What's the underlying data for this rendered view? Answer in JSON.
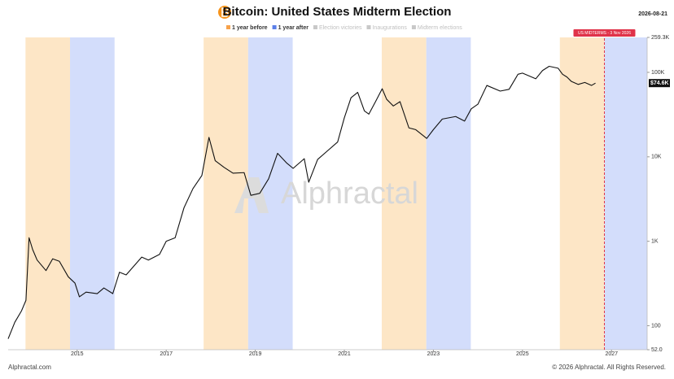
{
  "chart_data": {
    "type": "line",
    "title": "Bitcoin: United States Midterm Election",
    "date": "2026-08-21",
    "watermark": "Alphractal",
    "footer_left": "Alphractal.com",
    "footer_right": "© 2026 Alphractal. All Rights Reserved.",
    "log_scale": true,
    "legend": [
      {
        "name": "1 year before",
        "color": "#f7a24b",
        "active": true
      },
      {
        "name": "1 year after",
        "color": "#5b7fe8",
        "active": true
      },
      {
        "name": "Election victories",
        "color": "#c8c8c8",
        "active": false
      },
      {
        "name": "Inaugurations",
        "color": "#c8c8c8",
        "active": false
      },
      {
        "name": "Midterm elections",
        "color": "#c8c8c8",
        "active": false
      }
    ],
    "bands": [
      {
        "start": 2013.84,
        "end": 2014.84,
        "color": "#fde6c6"
      },
      {
        "start": 2014.84,
        "end": 2015.84,
        "color": "#d3ddfb"
      },
      {
        "start": 2017.84,
        "end": 2018.84,
        "color": "#fde6c6"
      },
      {
        "start": 2018.84,
        "end": 2019.84,
        "color": "#d3ddfb"
      },
      {
        "start": 2021.84,
        "end": 2022.84,
        "color": "#fde6c6"
      },
      {
        "start": 2022.84,
        "end": 2023.84,
        "color": "#d3ddfb"
      },
      {
        "start": 2025.84,
        "end": 2026.84,
        "color": "#fde6c6"
      },
      {
        "start": 2026.84,
        "end": 2027.8,
        "color": "#d3ddfb"
      }
    ],
    "marker": {
      "x": 2026.84,
      "label": "US MIDTERMS - 3 Nov 2026",
      "color": "#e0334a"
    },
    "last_price_label": "$74.6K",
    "xlim": [
      2013.45,
      2027.8
    ],
    "xticks": [
      2015,
      2017,
      2019,
      2021,
      2023,
      2025,
      2027
    ],
    "ylim": [
      52,
      259300
    ],
    "yticks": [
      {
        "value": 52,
        "label": "52.0"
      },
      100,
      {
        "value": 1000,
        "label": "1K"
      },
      {
        "value": 10000,
        "label": "10K"
      },
      {
        "value": 100000,
        "label": "100K"
      },
      {
        "value": 259300,
        "label": "259.3K"
      }
    ],
    "series": [
      {
        "name": "Bitcoin",
        "color": "#111111",
        "x": [
          2013.45,
          2013.6,
          2013.75,
          2013.85,
          2013.92,
          2014.0,
          2014.1,
          2014.3,
          2014.45,
          2014.6,
          2014.8,
          2014.95,
          2015.05,
          2015.2,
          2015.45,
          2015.6,
          2015.8,
          2015.95,
          2016.1,
          2016.45,
          2016.6,
          2016.85,
          2017.0,
          2017.2,
          2017.4,
          2017.6,
          2017.8,
          2017.96,
          2018.1,
          2018.3,
          2018.5,
          2018.75,
          2018.9,
          2019.1,
          2019.3,
          2019.5,
          2019.7,
          2019.85,
          2020.1,
          2020.2,
          2020.4,
          2020.6,
          2020.85,
          2021.0,
          2021.15,
          2021.3,
          2021.45,
          2021.55,
          2021.7,
          2021.85,
          2021.95,
          2022.1,
          2022.25,
          2022.45,
          2022.6,
          2022.85,
          2023.0,
          2023.2,
          2023.5,
          2023.7,
          2023.85,
          2024.0,
          2024.2,
          2024.5,
          2024.7,
          2024.9,
          2025.0,
          2025.3,
          2025.45,
          2025.6,
          2025.8,
          2025.9,
          2026.0,
          2026.1,
          2026.25,
          2026.4,
          2026.55,
          2026.64
        ],
        "values": [
          70,
          110,
          150,
          200,
          1100,
          800,
          600,
          450,
          620,
          580,
          380,
          320,
          220,
          250,
          240,
          280,
          240,
          430,
          400,
          650,
          600,
          700,
          1000,
          1100,
          2500,
          4200,
          6000,
          17000,
          9000,
          7500,
          6400,
          6500,
          3500,
          3700,
          5500,
          11000,
          8500,
          7300,
          9500,
          5000,
          9300,
          11500,
          15000,
          29000,
          50000,
          58000,
          35000,
          32000,
          45000,
          64000,
          48000,
          40000,
          45000,
          22000,
          21000,
          16500,
          21000,
          28000,
          30000,
          26500,
          37000,
          42000,
          70000,
          60000,
          63000,
          95000,
          98000,
          84000,
          105000,
          118000,
          112000,
          95000,
          88000,
          78000,
          72000,
          76000,
          70000,
          74600
        ]
      }
    ]
  }
}
